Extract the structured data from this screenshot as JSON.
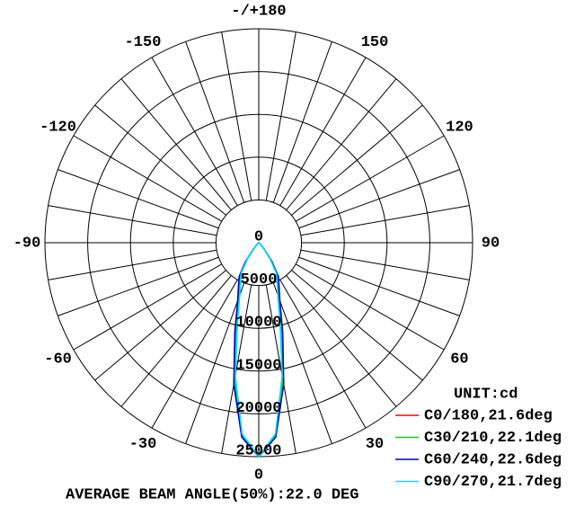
{
  "chart_data": {
    "type": "polar",
    "angle_ticks": [
      0,
      30,
      60,
      90,
      120,
      150,
      {
        "value": 180,
        "label": "-/+180"
      },
      -150,
      -120,
      -90,
      -60,
      -30
    ],
    "rlim": [
      0,
      25000
    ],
    "rticks": [
      0,
      5000,
      10000,
      15000,
      20000,
      25000
    ],
    "x": [
      -90,
      -60,
      -45,
      -40,
      -35,
      -30,
      -25,
      -20,
      -15,
      -10,
      -5,
      0,
      5,
      10,
      15,
      20,
      25,
      30,
      35,
      40,
      45,
      60,
      90
    ],
    "series": [
      {
        "name": "C0/180,21.6deg",
        "color": "#ff0000",
        "values": [
          0,
          50,
          300,
          900,
          2400,
          4300,
          5400,
          6800,
          10000,
          16000,
          22500,
          25000,
          22500,
          16000,
          10000,
          6800,
          5400,
          4300,
          2400,
          900,
          300,
          50,
          0
        ]
      },
      {
        "name": "C30/210,22.1deg",
        "color": "#00dd00",
        "values": [
          0,
          50,
          300,
          950,
          2500,
          4400,
          5500,
          7000,
          10300,
          16300,
          22600,
          25000,
          22600,
          16300,
          10300,
          7000,
          5500,
          4400,
          2500,
          950,
          300,
          50,
          0
        ]
      },
      {
        "name": "C60/240,22.6deg",
        "color": "#0000cc",
        "values": [
          0,
          60,
          350,
          1000,
          2700,
          4600,
          5600,
          7200,
          10800,
          16800,
          22800,
          25000,
          22800,
          16800,
          10800,
          7200,
          5600,
          4600,
          2700,
          1000,
          350,
          60,
          0
        ]
      },
      {
        "name": "C90/270,21.7deg",
        "color": "#00e0ff",
        "values": [
          0,
          40,
          280,
          850,
          2300,
          4100,
          5100,
          6500,
          9600,
          15800,
          22400,
          25000,
          22400,
          15800,
          9600,
          6500,
          5100,
          4100,
          2300,
          850,
          280,
          40,
          0
        ]
      }
    ],
    "legend_title": "UNIT:cd",
    "footer": "AVERAGE BEAM ANGLE(50%):22.0 DEG"
  }
}
